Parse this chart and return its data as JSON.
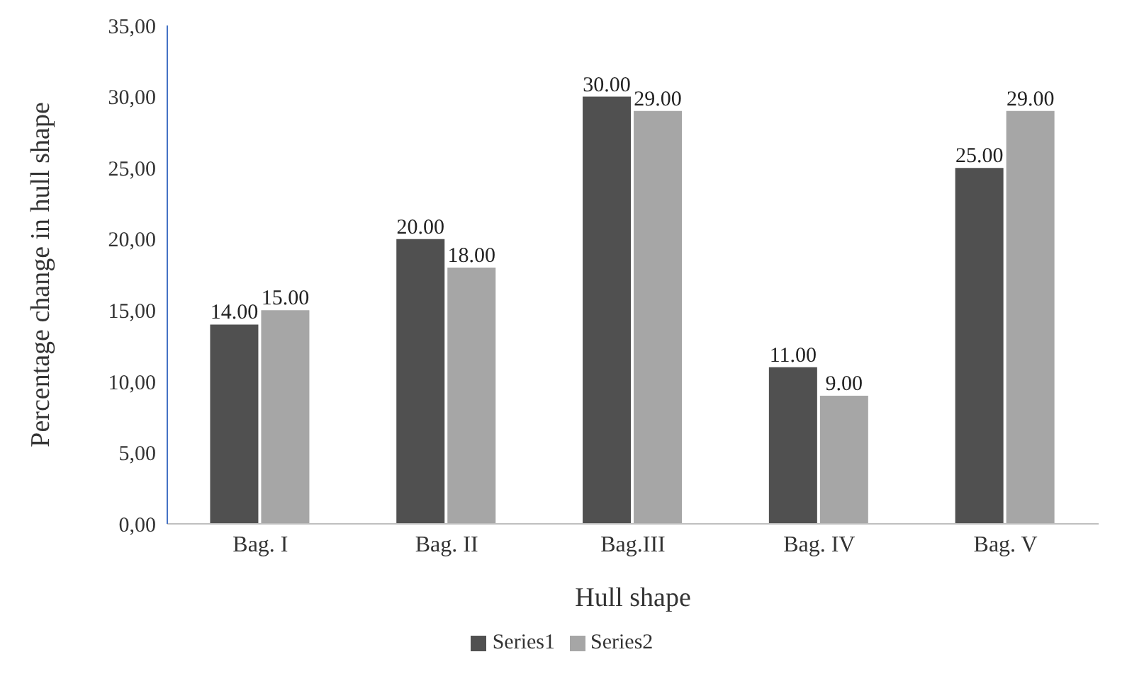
{
  "chart_data": {
    "type": "bar",
    "xlabel": "Hull shape",
    "ylabel": "Percentage change in hull shape",
    "categories": [
      "Bag. I",
      "Bag. II",
      "Bag.III",
      "Bag. IV",
      "Bag. V"
    ],
    "series": [
      {
        "name": "Series1",
        "color": "#505050",
        "values": [
          14,
          20,
          30,
          11,
          25
        ],
        "value_labels": [
          "14.00",
          "20.00",
          "30.00",
          "11.00",
          "25.00"
        ]
      },
      {
        "name": "Series2",
        "color": "#a6a6a6",
        "values": [
          15,
          18,
          29,
          9,
          29
        ],
        "value_labels": [
          "15.00",
          "18.00",
          "29.00",
          "9.00",
          "29.00"
        ]
      }
    ],
    "ylim": [
      0,
      35
    ],
    "yticks": [
      {
        "value": 0,
        "label": "0,00"
      },
      {
        "value": 5,
        "label": "5,00"
      },
      {
        "value": 10,
        "label": "10,00"
      },
      {
        "value": 15,
        "label": "15,00"
      },
      {
        "value": 20,
        "label": "20,00"
      },
      {
        "value": 25,
        "label": "25,00"
      },
      {
        "value": 30,
        "label": "30,00"
      },
      {
        "value": 35,
        "label": "35,00"
      }
    ],
    "legend": "bottom"
  }
}
